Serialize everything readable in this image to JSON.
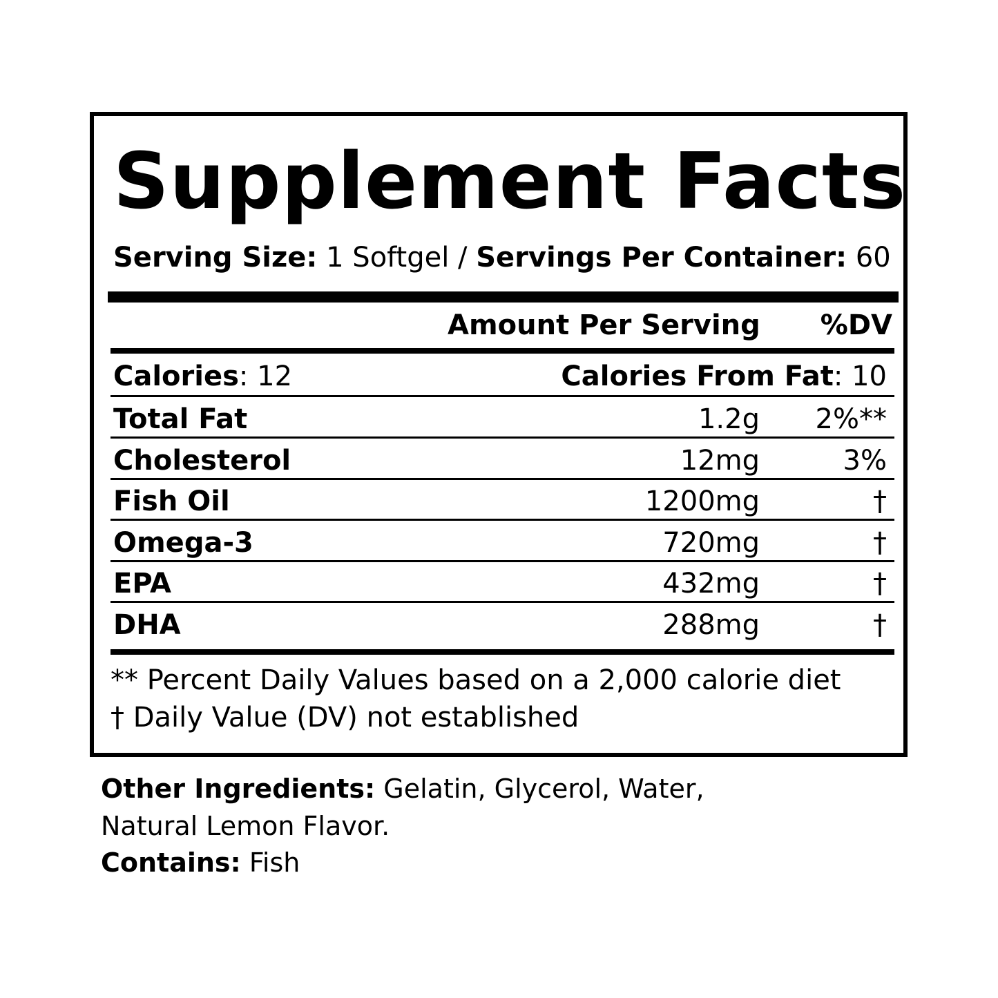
{
  "title": "Supplement Facts",
  "serving": {
    "size_label": "Serving Size:",
    "size_value": " 1 Softgel / ",
    "per_label": "Servings Per Container:",
    "per_value": " 60"
  },
  "header": {
    "amount": "Amount Per Serving",
    "dv": "%DV"
  },
  "calories": {
    "label": "Calories",
    "value": ": 12",
    "fat_label": "Calories From Fat",
    "fat_value": ": 10"
  },
  "rows": [
    {
      "name": "Total Fat",
      "amount": "1.2g",
      "dv": "2%**"
    },
    {
      "name": "Cholesterol",
      "amount": "12mg",
      "dv": "3%"
    },
    {
      "name": "Fish Oil",
      "amount": "1200mg",
      "dv": "†"
    },
    {
      "name": "Omega-3",
      "amount": "720mg",
      "dv": "†"
    },
    {
      "name": "EPA",
      "amount": "432mg",
      "dv": "†"
    },
    {
      "name": "DHA",
      "amount": "288mg",
      "dv": "†"
    }
  ],
  "footnotes": [
    "** Percent Daily Values based on a 2,000 calorie diet",
    "† Daily Value (DV) not established"
  ],
  "other": {
    "label": "Other Ingredients:",
    "value": " Gelatin, Glycerol, Water,",
    "value2": "Natural Lemon Flavor.",
    "contains_label": "Contains:",
    "contains_value": " Fish"
  }
}
